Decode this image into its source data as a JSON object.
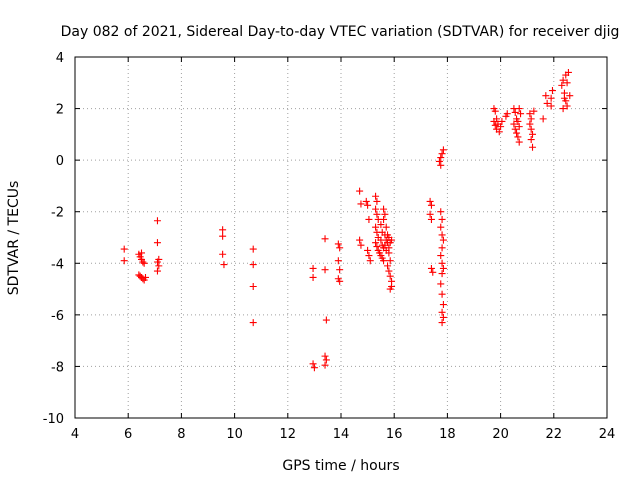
{
  "chart_data": {
    "type": "scatter",
    "title": "Day 082 of 2021, Sidereal Day-to-day VTEC variation (SDTVAR) for receiver djig",
    "xlabel": "GPS time / hours",
    "ylabel": "SDTVAR / TECUs",
    "xlim": [
      4,
      24
    ],
    "ylim": [
      -10,
      4
    ],
    "xticks": [
      4,
      6,
      8,
      10,
      12,
      14,
      16,
      18,
      20,
      22,
      24
    ],
    "yticks": [
      -10,
      -8,
      -6,
      -4,
      -2,
      0,
      2,
      4
    ],
    "xtick_labels": [
      "4",
      "6",
      "8",
      "10",
      "12",
      "14",
      "16",
      "18",
      "20",
      "22",
      "24"
    ],
    "ytick_labels": [
      "-10",
      "-8",
      "-6",
      "-4",
      "-2",
      "0",
      "2",
      "4"
    ],
    "grid": true,
    "marker": "+",
    "series_color": "#ff0000",
    "series": [
      {
        "name": "SDTVAR",
        "points": [
          [
            5.85,
            -3.45
          ],
          [
            5.85,
            -3.9
          ],
          [
            6.4,
            -3.65
          ],
          [
            6.45,
            -3.75
          ],
          [
            6.5,
            -3.85
          ],
          [
            6.55,
            -3.95
          ],
          [
            6.6,
            -4.0
          ],
          [
            6.5,
            -3.6
          ],
          [
            6.4,
            -4.45
          ],
          [
            6.45,
            -4.5
          ],
          [
            6.5,
            -4.55
          ],
          [
            6.55,
            -4.6
          ],
          [
            6.6,
            -4.65
          ],
          [
            6.65,
            -4.55
          ],
          [
            7.1,
            -2.35
          ],
          [
            7.1,
            -3.2
          ],
          [
            7.1,
            -3.95
          ],
          [
            7.15,
            -4.1
          ],
          [
            7.1,
            -4.3
          ],
          [
            7.15,
            -3.85
          ],
          [
            9.55,
            -2.7
          ],
          [
            9.55,
            -2.95
          ],
          [
            9.55,
            -3.65
          ],
          [
            9.6,
            -4.05
          ],
          [
            10.7,
            -3.45
          ],
          [
            10.7,
            -4.05
          ],
          [
            10.7,
            -4.9
          ],
          [
            10.7,
            -6.3
          ],
          [
            12.95,
            -4.2
          ],
          [
            12.95,
            -4.55
          ],
          [
            12.95,
            -7.9
          ],
          [
            13.0,
            -8.05
          ],
          [
            13.4,
            -3.05
          ],
          [
            13.4,
            -4.25
          ],
          [
            13.45,
            -6.2
          ],
          [
            13.4,
            -7.6
          ],
          [
            13.45,
            -7.75
          ],
          [
            13.4,
            -7.95
          ],
          [
            13.9,
            -3.25
          ],
          [
            13.95,
            -3.4
          ],
          [
            13.9,
            -3.9
          ],
          [
            13.95,
            -4.25
          ],
          [
            13.9,
            -4.6
          ],
          [
            13.95,
            -4.7
          ],
          [
            14.7,
            -1.2
          ],
          [
            14.75,
            -1.7
          ],
          [
            14.7,
            -3.1
          ],
          [
            14.75,
            -3.3
          ],
          [
            14.95,
            -1.6
          ],
          [
            15.0,
            -1.75
          ],
          [
            15.05,
            -2.3
          ],
          [
            15.0,
            -3.5
          ],
          [
            15.05,
            -3.7
          ],
          [
            15.1,
            -3.9
          ],
          [
            15.3,
            -1.4
          ],
          [
            15.35,
            -1.6
          ],
          [
            15.3,
            -1.9
          ],
          [
            15.35,
            -2.1
          ],
          [
            15.4,
            -2.3
          ],
          [
            15.3,
            -2.6
          ],
          [
            15.35,
            -2.8
          ],
          [
            15.4,
            -3.0
          ],
          [
            15.3,
            -3.2
          ],
          [
            15.35,
            -3.35
          ],
          [
            15.4,
            -3.5
          ],
          [
            15.45,
            -3.6
          ],
          [
            15.5,
            -2.5
          ],
          [
            15.55,
            -2.8
          ],
          [
            15.5,
            -3.1
          ],
          [
            15.55,
            -3.3
          ],
          [
            15.6,
            -3.4
          ],
          [
            15.5,
            -3.7
          ],
          [
            15.55,
            -3.8
          ],
          [
            15.6,
            -3.9
          ],
          [
            15.65,
            -2.9
          ],
          [
            15.7,
            -3.1
          ],
          [
            15.65,
            -3.3
          ],
          [
            15.7,
            -3.5
          ],
          [
            15.6,
            -1.9
          ],
          [
            15.65,
            -2.1
          ],
          [
            15.6,
            -2.3
          ],
          [
            15.7,
            -2.6
          ],
          [
            15.75,
            -2.9
          ],
          [
            15.75,
            -3.2
          ],
          [
            15.8,
            -3.0
          ],
          [
            15.85,
            -3.2
          ],
          [
            15.8,
            -3.6
          ],
          [
            15.85,
            -3.9
          ],
          [
            15.75,
            -4.1
          ],
          [
            15.8,
            -4.3
          ],
          [
            15.85,
            -4.5
          ],
          [
            15.9,
            -4.7
          ],
          [
            15.9,
            -4.9
          ],
          [
            15.85,
            -5.0
          ],
          [
            15.8,
            -3.4
          ],
          [
            15.9,
            -3.1
          ],
          [
            17.35,
            -1.6
          ],
          [
            17.4,
            -1.75
          ],
          [
            17.35,
            -2.1
          ],
          [
            17.4,
            -2.3
          ],
          [
            17.4,
            -4.2
          ],
          [
            17.45,
            -4.35
          ],
          [
            17.7,
            -0.05
          ],
          [
            17.75,
            0.1
          ],
          [
            17.8,
            0.25
          ],
          [
            17.85,
            0.4
          ],
          [
            17.75,
            -0.2
          ],
          [
            17.75,
            -2.0
          ],
          [
            17.8,
            -2.3
          ],
          [
            17.75,
            -2.6
          ],
          [
            17.8,
            -2.9
          ],
          [
            17.85,
            -3.1
          ],
          [
            17.8,
            -3.4
          ],
          [
            17.75,
            -3.7
          ],
          [
            17.8,
            -4.0
          ],
          [
            17.85,
            -4.2
          ],
          [
            17.8,
            -4.4
          ],
          [
            17.75,
            -4.8
          ],
          [
            17.8,
            -5.2
          ],
          [
            17.85,
            -5.6
          ],
          [
            17.8,
            -5.9
          ],
          [
            17.85,
            -6.1
          ],
          [
            17.8,
            -6.3
          ],
          [
            19.75,
            2.0
          ],
          [
            19.8,
            1.9
          ],
          [
            19.75,
            1.5
          ],
          [
            19.8,
            1.35
          ],
          [
            19.85,
            1.2
          ],
          [
            19.9,
            1.4
          ],
          [
            19.95,
            1.1
          ],
          [
            20.0,
            1.3
          ],
          [
            20.05,
            1.5
          ],
          [
            19.85,
            1.6
          ],
          [
            20.2,
            1.7
          ],
          [
            20.25,
            1.8
          ],
          [
            20.5,
            2.0
          ],
          [
            20.55,
            1.85
          ],
          [
            20.6,
            1.6
          ],
          [
            20.5,
            1.4
          ],
          [
            20.55,
            1.2
          ],
          [
            20.6,
            1.05
          ],
          [
            20.65,
            0.9
          ],
          [
            20.7,
            0.7
          ],
          [
            20.65,
            1.5
          ],
          [
            20.7,
            1.3
          ],
          [
            20.75,
            1.8
          ],
          [
            20.7,
            2.0
          ],
          [
            21.1,
            1.8
          ],
          [
            21.15,
            1.6
          ],
          [
            21.1,
            1.4
          ],
          [
            21.15,
            1.2
          ],
          [
            21.2,
            1.0
          ],
          [
            21.15,
            0.8
          ],
          [
            21.2,
            0.5
          ],
          [
            21.25,
            1.9
          ],
          [
            21.6,
            1.6
          ],
          [
            21.7,
            2.5
          ],
          [
            21.75,
            2.2
          ],
          [
            21.9,
            2.4
          ],
          [
            21.95,
            2.7
          ],
          [
            21.9,
            2.1
          ],
          [
            22.3,
            2.9
          ],
          [
            22.35,
            3.1
          ],
          [
            22.4,
            2.6
          ],
          [
            22.45,
            2.3
          ],
          [
            22.5,
            2.1
          ],
          [
            22.35,
            2.0
          ],
          [
            22.55,
            3.4
          ],
          [
            22.5,
            3.0
          ],
          [
            22.6,
            2.5
          ],
          [
            22.4,
            2.4
          ],
          [
            22.45,
            3.3
          ]
        ]
      }
    ]
  }
}
